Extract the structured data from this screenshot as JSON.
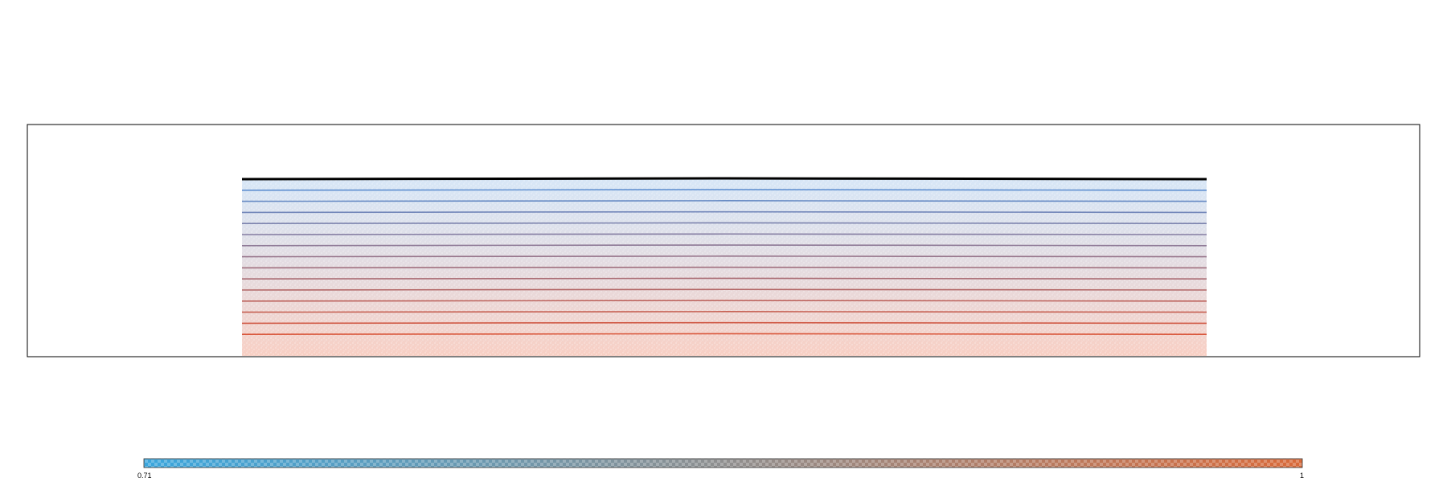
{
  "colors": {
    "background": "#ffffff",
    "frame": "#000000",
    "top_layer": "#000000",
    "cold": "#4a8fd8",
    "hot": "#e8603a",
    "colorbar_low": "#3aa6dd",
    "colorbar_mid": "#8f8f8f",
    "colorbar_high": "#d96a3a"
  },
  "layers": {
    "count": 15,
    "top_line": "black"
  },
  "legend": {
    "min_label": "0.71",
    "max_label": "1"
  }
}
